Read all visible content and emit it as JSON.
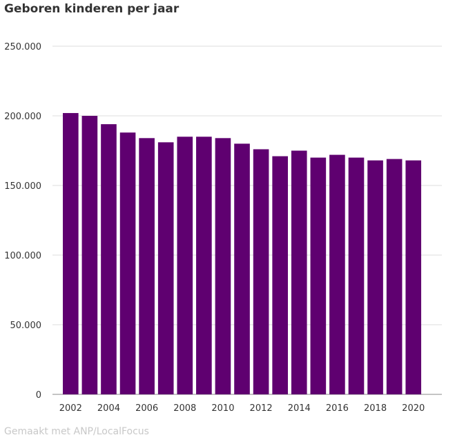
{
  "chart_data": {
    "type": "bar",
    "title": "Geboren kinderen per jaar",
    "xlabel": "",
    "ylabel": "",
    "categories": [
      "2002",
      "2003",
      "2004",
      "2005",
      "2006",
      "2007",
      "2008",
      "2009",
      "2010",
      "2011",
      "2012",
      "2013",
      "2014",
      "2015",
      "2016",
      "2017",
      "2018",
      "2019",
      "2020"
    ],
    "values": [
      202000,
      200000,
      194000,
      188000,
      184000,
      181000,
      185000,
      185000,
      184000,
      180000,
      176000,
      171000,
      175000,
      170000,
      172000,
      170000,
      168000,
      169000,
      168000
    ],
    "x_tick_labels": [
      "2002",
      "2004",
      "2006",
      "2008",
      "2010",
      "2012",
      "2014",
      "2016",
      "2018",
      "2020"
    ],
    "y_ticks": [
      0,
      50000,
      100000,
      150000,
      200000,
      250000
    ],
    "y_tick_labels": [
      "0",
      "50.000",
      "100.000",
      "150.000",
      "200.000",
      "250.000"
    ],
    "ylim": [
      0,
      250000
    ],
    "grid": true,
    "bar_color": "#5f0070",
    "grid_color": "#dddddd"
  },
  "credit": "Gemaakt met ANP/LocalFocus"
}
